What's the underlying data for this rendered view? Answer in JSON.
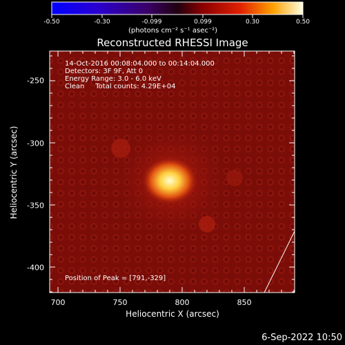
{
  "colorbar": {
    "ticks": [
      "-0.50",
      "-0.30",
      "-0.099",
      "0.099",
      "0.30",
      "0.50"
    ],
    "unit_label": "(photons cm⁻² s⁻¹ asec⁻²)"
  },
  "title": "Reconstructed RHESSI Image",
  "info": {
    "time": "14-Oct-2016 00:08:04.000 to 00:14:04.000",
    "detectors": "Detectors: 3F 9F, Att 0",
    "energy": "Energy Range: 3.0 - 6.0 keV",
    "clean": "Clean     Total counts: 4.29E+04"
  },
  "peak_label": "Position of Peak = [791,-329]",
  "xaxis": {
    "label": "Heliocentric X (arcsec)",
    "ticks": [
      "700",
      "750",
      "800",
      "850"
    ]
  },
  "yaxis": {
    "label": "Heliocentric Y (arcsec)",
    "ticks": [
      "-250",
      "-300",
      "-350",
      "-400"
    ]
  },
  "footer_date": "6-Sep-2022 10:50",
  "colors": {
    "background": "#000000",
    "image_base": "#7a0d08",
    "peak": "#ffffc0"
  }
}
